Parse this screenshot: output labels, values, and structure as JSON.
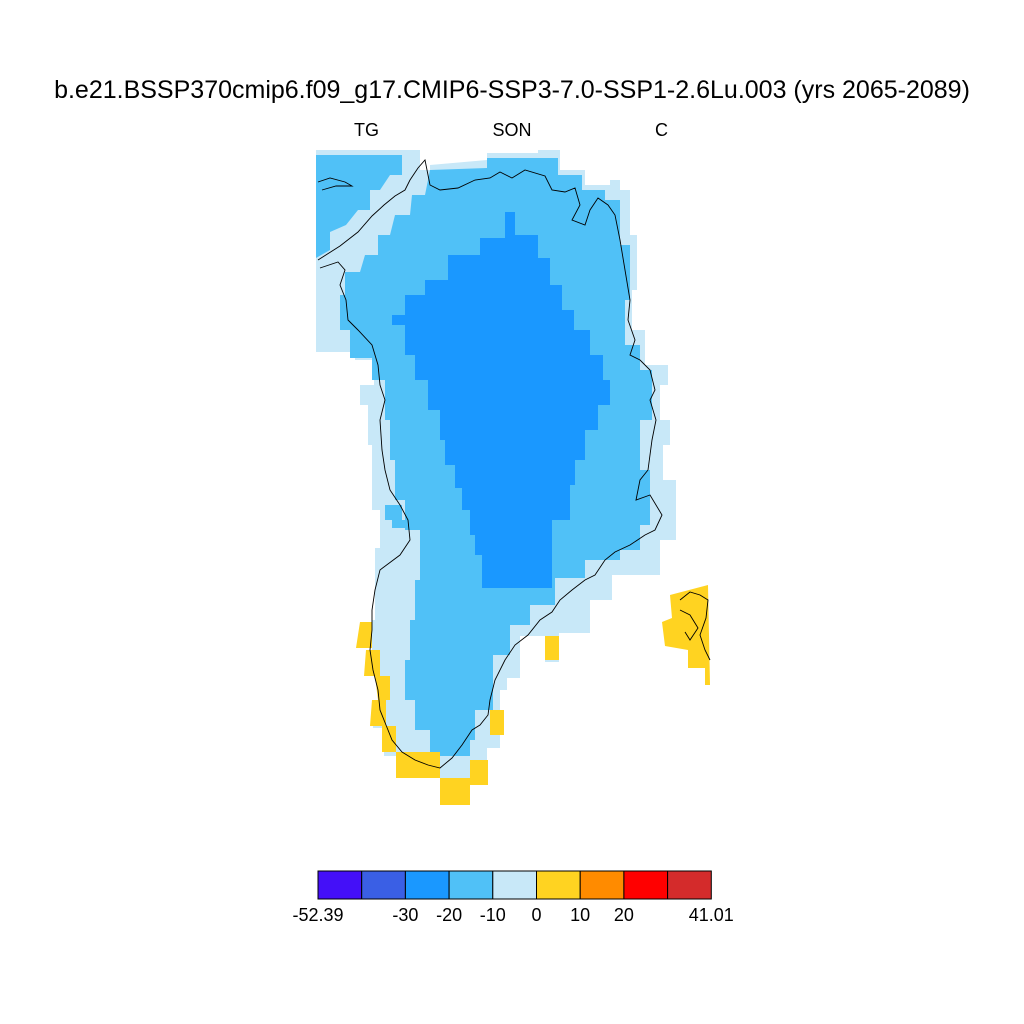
{
  "title": "b.e21.BSSP370cmip6.f09_g17.CMIP6-SSP3-7.0-SSP1-2.6Lu.003 (yrs 2065-2089)",
  "subtitle_left": "TG",
  "subtitle_center": "SON",
  "subtitle_right": "C",
  "colorbar": {
    "colors": [
      "#4410f8",
      "#3a5fe5",
      "#1a98ff",
      "#50c1f7",
      "#c8e8f8",
      "#ffd321",
      "#ff8b00",
      "#ff0000",
      "#d42b2b"
    ],
    "labels": [
      "-52.39",
      "",
      "-30",
      "-20",
      "-10",
      "0",
      "10",
      "20",
      "",
      "41.01"
    ]
  },
  "regions": [
    {
      "name": "ice-sheet-margin",
      "level": "-10 to 0",
      "color": "#c8e8f8"
    },
    {
      "name": "ice-sheet-slope",
      "level": "-20 to -10",
      "color": "#50c1f7"
    },
    {
      "name": "ice-sheet-interior",
      "level": "-30 to -20",
      "color": "#1a98ff"
    },
    {
      "name": "south-coast-cells",
      "level": "0 to 10",
      "color": "#ffd321"
    },
    {
      "name": "iceland-cells",
      "level": "0 to 10",
      "color": "#ffd321"
    }
  ]
}
